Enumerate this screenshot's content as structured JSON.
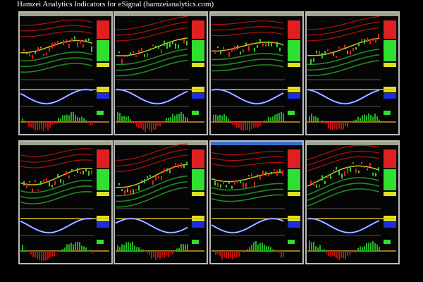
{
  "header": {
    "title": "Hamzei Analytics Indicators for eSignal (hamzeianalytics.com)"
  }
}
